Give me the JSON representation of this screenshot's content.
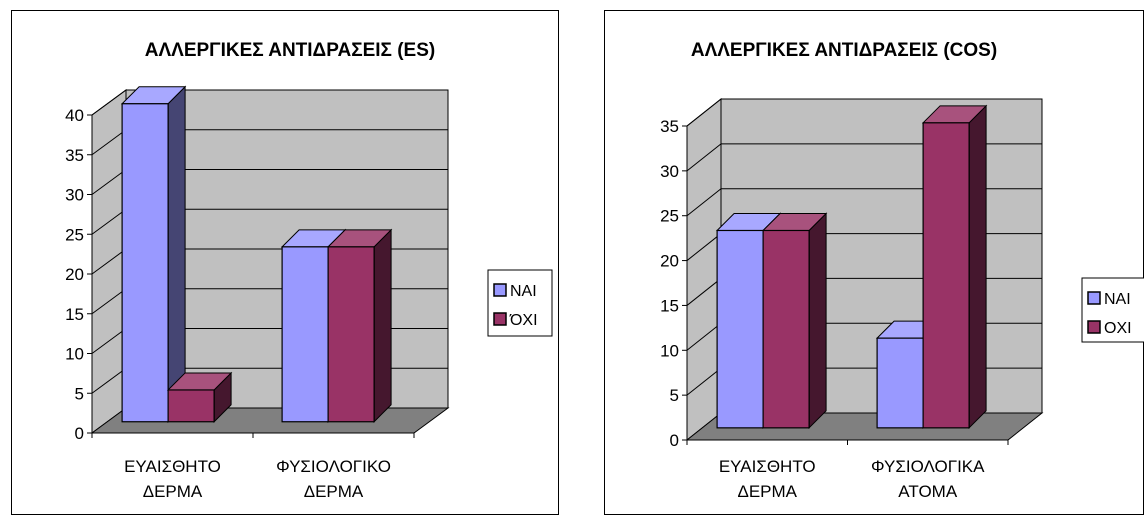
{
  "chart_data": [
    {
      "type": "bar",
      "title": "ΑΛΛΕΡΓΙΚΕΣ ΑΝΤΙΔΡΑΣΕΙΣ (ES)",
      "categories": [
        [
          "ΕΥΑΙΣΘΗΤΟ",
          "ΔΕΡΜΑ"
        ],
        [
          "ΦΥΣΙΟΛΟΓΙΚΟ",
          "ΔΕΡΜΑ"
        ]
      ],
      "series": [
        {
          "name": "ΝΑΙ",
          "values": [
            40,
            22
          ],
          "color": "#9999ff"
        },
        {
          "name": "ΌΧΙ",
          "values": [
            4,
            22
          ],
          "color": "#993366"
        }
      ],
      "ylim": [
        0,
        40
      ],
      "yticks": [
        0,
        5,
        10,
        15,
        20,
        25,
        30,
        35,
        40
      ],
      "grid": true,
      "legend": "right"
    },
    {
      "type": "bar",
      "title": "ΑΛΛΕΡΓΙΚΕΣ ΑΝΤΙΔΡΑΣΕΙΣ (COS)",
      "categories": [
        [
          "ΕΥΑΙΣΘΗΤΟ",
          "ΔΕΡΜΑ"
        ],
        [
          "ΦΥΣΙΟΛΟΓΙΚΑ",
          "ΑΤΟΜΑ"
        ]
      ],
      "series": [
        {
          "name": "ΝΑΙ",
          "values": [
            22,
            10
          ],
          "color": "#9999ff"
        },
        {
          "name": "ΟΧΙ",
          "values": [
            22,
            34
          ],
          "color": "#993366"
        }
      ],
      "ylim": [
        0,
        35
      ],
      "yticks": [
        0,
        5,
        10,
        15,
        20,
        25,
        30,
        35
      ],
      "grid": true,
      "legend": "right"
    }
  ]
}
